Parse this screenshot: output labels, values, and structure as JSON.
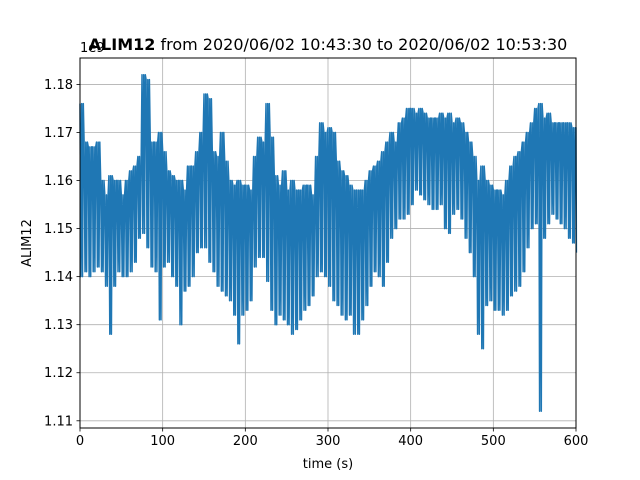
{
  "chart_data": {
    "type": "line",
    "title_bold": "ALIM12",
    "title_rest": " from 2020/06/02 10:43:30 to 2020/06/02 10:53:30",
    "xlabel": "time (s)",
    "ylabel": "ALIM12",
    "y_offset_label": "1e9",
    "xlim": [
      0,
      600
    ],
    "ylim": [
      1.1085,
      1.1855
    ],
    "x_ticks": [
      0,
      100,
      200,
      300,
      400,
      500,
      600
    ],
    "x_tick_labels": [
      "0",
      "100",
      "200",
      "300",
      "400",
      "500",
      "600"
    ],
    "y_ticks": [
      1.11,
      1.12,
      1.13,
      1.14,
      1.15,
      1.16,
      1.17,
      1.18
    ],
    "y_tick_labels": [
      "1.11",
      "1.12",
      "1.13",
      "1.14",
      "1.15",
      "1.16",
      "1.17",
      "1.18"
    ],
    "grid": true,
    "line_color": "#1f77b4",
    "series": [
      {
        "x": [
          0,
          5,
          10,
          15,
          20,
          25,
          30,
          35,
          40,
          45,
          50,
          55,
          60,
          65,
          70,
          75,
          80,
          85,
          90,
          95,
          100,
          105,
          110,
          115,
          120,
          125,
          130,
          135,
          140,
          145,
          150,
          155,
          160,
          165,
          170,
          175,
          180,
          185,
          190,
          195,
          200,
          205,
          210,
          215,
          220,
          225,
          230,
          235,
          240,
          245,
          250,
          255,
          260,
          265,
          270,
          275,
          280,
          285,
          290,
          295,
          300,
          305,
          310,
          315,
          320,
          325,
          330,
          335,
          340,
          345,
          350,
          355,
          360,
          365,
          370,
          375,
          380,
          385,
          390,
          395,
          400,
          405,
          410,
          415,
          420,
          425,
          430,
          435,
          440,
          445,
          450,
          455,
          460,
          465,
          470,
          475,
          480,
          485,
          490,
          495,
          500,
          505,
          510,
          515,
          520,
          525,
          530,
          535,
          540,
          545,
          550,
          555,
          560,
          565,
          570,
          575,
          580,
          585,
          590,
          595,
          600
        ],
        "y_max": [
          1.176,
          1.168,
          1.167,
          1.167,
          1.168,
          1.16,
          1.157,
          1.161,
          1.16,
          1.16,
          1.157,
          1.16,
          1.162,
          1.163,
          1.165,
          1.182,
          1.181,
          1.168,
          1.168,
          1.17,
          1.166,
          1.162,
          1.161,
          1.16,
          1.16,
          1.158,
          1.163,
          1.163,
          1.166,
          1.17,
          1.178,
          1.177,
          1.166,
          1.165,
          1.17,
          1.164,
          1.16,
          1.159,
          1.16,
          1.159,
          1.159,
          1.158,
          1.165,
          1.169,
          1.168,
          1.176,
          1.169,
          1.161,
          1.159,
          1.162,
          1.158,
          1.16,
          1.158,
          1.158,
          1.159,
          1.159,
          1.157,
          1.165,
          1.172,
          1.17,
          1.171,
          1.17,
          1.164,
          1.162,
          1.161,
          1.159,
          1.158,
          1.158,
          1.158,
          1.16,
          1.162,
          1.163,
          1.164,
          1.166,
          1.168,
          1.17,
          1.168,
          1.172,
          1.173,
          1.175,
          1.175,
          1.174,
          1.175,
          1.174,
          1.173,
          1.173,
          1.173,
          1.174,
          1.173,
          1.174,
          1.172,
          1.173,
          1.172,
          1.17,
          1.168,
          1.165,
          1.16,
          1.163,
          1.16,
          1.159,
          1.158,
          1.158,
          1.157,
          1.16,
          1.163,
          1.165,
          1.166,
          1.168,
          1.17,
          1.172,
          1.175,
          1.176,
          1.173,
          1.174,
          1.172,
          1.172,
          1.172,
          1.172,
          1.172,
          1.171,
          1.171
        ],
        "y_min": [
          1.14,
          1.141,
          1.14,
          1.141,
          1.142,
          1.141,
          1.138,
          1.128,
          1.138,
          1.141,
          1.14,
          1.14,
          1.141,
          1.143,
          1.148,
          1.149,
          1.146,
          1.142,
          1.141,
          1.131,
          1.142,
          1.143,
          1.14,
          1.138,
          1.13,
          1.137,
          1.138,
          1.14,
          1.145,
          1.146,
          1.146,
          1.143,
          1.141,
          1.138,
          1.137,
          1.136,
          1.135,
          1.132,
          1.126,
          1.132,
          1.133,
          1.135,
          1.142,
          1.144,
          1.144,
          1.139,
          1.133,
          1.13,
          1.132,
          1.131,
          1.13,
          1.128,
          1.129,
          1.131,
          1.133,
          1.134,
          1.136,
          1.14,
          1.141,
          1.14,
          1.138,
          1.135,
          1.134,
          1.132,
          1.131,
          1.132,
          1.128,
          1.128,
          1.131,
          1.134,
          1.138,
          1.141,
          1.14,
          1.138,
          1.143,
          1.148,
          1.15,
          1.152,
          1.152,
          1.153,
          1.155,
          1.158,
          1.157,
          1.156,
          1.155,
          1.154,
          1.154,
          1.155,
          1.15,
          1.149,
          1.153,
          1.154,
          1.152,
          1.148,
          1.145,
          1.14,
          1.128,
          1.125,
          1.134,
          1.135,
          1.133,
          1.133,
          1.132,
          1.133,
          1.136,
          1.137,
          1.138,
          1.141,
          1.146,
          1.15,
          1.151,
          1.112,
          1.148,
          1.151,
          1.153,
          1.152,
          1.151,
          1.15,
          1.148,
          1.147,
          1.145
        ]
      }
    ]
  }
}
